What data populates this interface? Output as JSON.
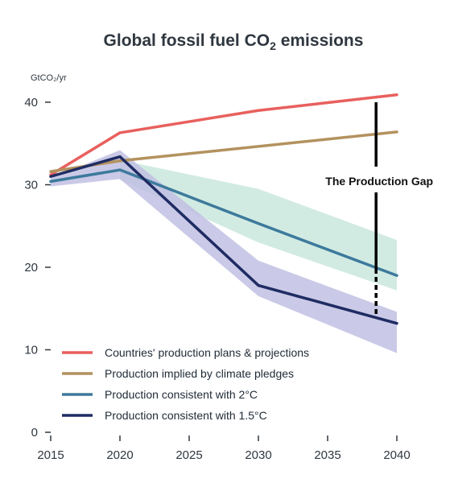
{
  "chart_data": {
    "type": "line",
    "title": "Global fossil fuel CO",
    "title_sub": "2",
    "title_suffix": " emissions",
    "ylabel": "GtCO₂/yr",
    "xlabel": "",
    "x_ticks": [
      "2015",
      "2020",
      "2025",
      "2030",
      "2035",
      "2040"
    ],
    "y_ticks": [
      "0",
      "10",
      "20",
      "30",
      "40"
    ],
    "xlim": [
      2015,
      2040
    ],
    "ylim": [
      0,
      40
    ],
    "grid": false,
    "legend_position": "bottom-left",
    "series": [
      {
        "name": "Countries' production plans & projections",
        "color": "#e8605e",
        "x": [
          2015,
          2020,
          2030,
          2040
        ],
        "values": [
          31.2,
          36.3,
          39.0,
          40.9
        ]
      },
      {
        "name": "Production implied by climate pledges",
        "color": "#b3925f",
        "x": [
          2015,
          2020,
          2040
        ],
        "values": [
          31.6,
          32.9,
          36.4
        ]
      },
      {
        "name": "Production consistent with 2°C",
        "color": "#3d7a9c",
        "x": [
          2015,
          2020,
          2030,
          2040
        ],
        "values": [
          30.4,
          31.8,
          25.3,
          19.0
        ],
        "band_color": "#cde9df",
        "band": {
          "x": [
            2020,
            2030,
            2040
          ],
          "upper": [
            33.0,
            29.5,
            23.3
          ],
          "lower": [
            30.6,
            23.0,
            17.2
          ]
        }
      },
      {
        "name": "Production consistent with 1.5°C",
        "color": "#1f2c63",
        "x": [
          2015,
          2020,
          2030,
          2040
        ],
        "values": [
          31.0,
          33.4,
          17.8,
          13.2
        ],
        "band_color": "#c1bfe3",
        "band": {
          "x": [
            2015,
            2020,
            2030,
            2040
          ],
          "upper": [
            30.8,
            34.2,
            20.8,
            14.6
          ],
          "lower": [
            29.8,
            30.7,
            16.5,
            9.6
          ]
        }
      }
    ],
    "annotation": {
      "text": "The Production Gap",
      "x": 2038.5,
      "from": 40.0,
      "to": 14.2,
      "color": "#000000"
    }
  }
}
